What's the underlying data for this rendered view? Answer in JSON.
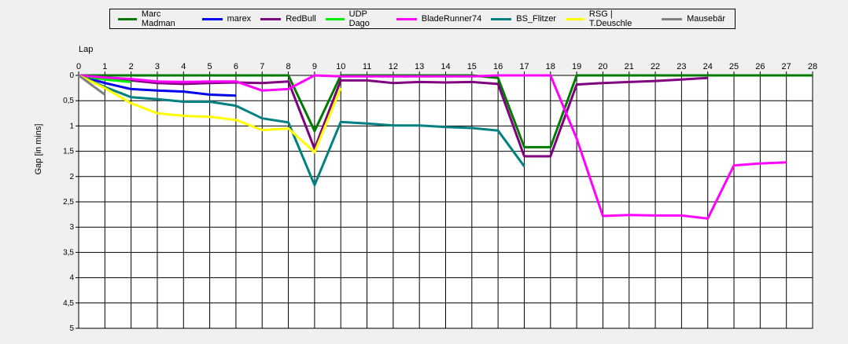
{
  "chart_data": {
    "type": "line",
    "xlabel": "Lap",
    "ylabel": "Gap [in mins]",
    "xlim": [
      0,
      28
    ],
    "ylim": [
      0,
      5
    ],
    "y_inverted": true,
    "x_ticks": [
      "0",
      "1",
      "2",
      "3",
      "4",
      "5",
      "6",
      "7",
      "8",
      "9",
      "10",
      "11",
      "12",
      "13",
      "14",
      "15",
      "16",
      "17",
      "18",
      "19",
      "20",
      "21",
      "22",
      "23",
      "24",
      "25",
      "26",
      "27",
      "28"
    ],
    "y_ticks": [
      {
        "value": 0,
        "label": "0"
      },
      {
        "value": 0.5,
        "label": "0,5"
      },
      {
        "value": 1,
        "label": "1"
      },
      {
        "value": 1.5,
        "label": "1,5"
      },
      {
        "value": 2,
        "label": "2"
      },
      {
        "value": 2.5,
        "label": "2,5"
      },
      {
        "value": 3,
        "label": "3"
      },
      {
        "value": 3.5,
        "label": "3,5"
      },
      {
        "value": 4,
        "label": "4"
      },
      {
        "value": 4.5,
        "label": "4,5"
      },
      {
        "value": 5,
        "label": "5"
      }
    ],
    "grid": true,
    "legend_position": "top",
    "series": [
      {
        "name": "Marc Madman",
        "color": "#007a00",
        "x": [
          0,
          1,
          2,
          3,
          4,
          5,
          6,
          7,
          8,
          9,
          10,
          11,
          12,
          13,
          14,
          15,
          16,
          17,
          18,
          19,
          20,
          21,
          22,
          23,
          24,
          25,
          26,
          27,
          28
        ],
        "y": [
          0,
          0,
          0,
          0,
          0,
          0,
          0,
          0,
          0,
          1.1,
          0,
          0,
          0,
          0,
          0,
          0,
          0.05,
          1.42,
          1.42,
          0,
          0,
          0,
          0,
          0,
          0,
          0,
          0,
          0,
          0
        ]
      },
      {
        "name": "marex",
        "color": "#0000ee",
        "x": [
          0,
          1,
          2,
          3,
          4,
          5,
          6
        ],
        "y": [
          0,
          0.15,
          0.27,
          0.3,
          0.32,
          0.38,
          0.4
        ]
      },
      {
        "name": "RedBull",
        "color": "#800080",
        "x": [
          0,
          1,
          2,
          3,
          4,
          5,
          6,
          7,
          8,
          9,
          10,
          11,
          12,
          13,
          14,
          15,
          16,
          17,
          18,
          19,
          20,
          21,
          22,
          23,
          24
        ],
        "y": [
          0,
          0.05,
          0.1,
          0.15,
          0.17,
          0.15,
          0.14,
          0.15,
          0.12,
          1.45,
          0.1,
          0.1,
          0.15,
          0.13,
          0.14,
          0.13,
          0.17,
          1.6,
          1.6,
          0.18,
          0.15,
          0.13,
          0.11,
          0.08,
          0.05
        ]
      },
      {
        "name": "UDP Dago",
        "color": "#00ee00",
        "x": [
          0,
          1,
          2
        ],
        "y": [
          0,
          0.08,
          0.13
        ]
      },
      {
        "name": "BladeRunner74",
        "color": "#ff00ff",
        "x": [
          0,
          1,
          2,
          3,
          4,
          5,
          6,
          7,
          8,
          9,
          10,
          11,
          12,
          13,
          14,
          15,
          16,
          17,
          18,
          19,
          20,
          21,
          22,
          23,
          24,
          25,
          26,
          27
        ],
        "y": [
          0,
          0.04,
          0.07,
          0.12,
          0.13,
          0.12,
          0.12,
          0.3,
          0.27,
          0,
          0.02,
          0.02,
          0.02,
          0.02,
          0.02,
          0.02,
          0,
          0,
          0,
          1.25,
          2.78,
          2.76,
          2.77,
          2.77,
          2.83,
          1.78,
          1.74,
          1.72
        ]
      },
      {
        "name": "BS_Flitzer",
        "color": "#008080",
        "x": [
          0,
          1,
          2,
          3,
          4,
          5,
          6,
          7,
          8,
          9,
          10,
          11,
          12,
          13,
          14,
          15,
          16,
          17
        ],
        "y": [
          0,
          0.23,
          0.43,
          0.47,
          0.52,
          0.52,
          0.6,
          0.85,
          0.93,
          2.17,
          0.92,
          0.95,
          0.99,
          0.99,
          1.02,
          1.04,
          1.09,
          1.8
        ]
      },
      {
        "name": "RSG | T.Deuschle",
        "color": "#ffff00",
        "x": [
          0,
          1,
          2,
          3,
          4,
          5,
          6,
          7,
          8,
          9,
          10
        ],
        "y": [
          0,
          0.25,
          0.55,
          0.75,
          0.8,
          0.82,
          0.88,
          1.08,
          1.05,
          1.52,
          0.25
        ]
      },
      {
        "name": "Mausebär",
        "color": "#808080",
        "x": [
          0,
          1
        ],
        "y": [
          0,
          0.38
        ]
      }
    ]
  }
}
